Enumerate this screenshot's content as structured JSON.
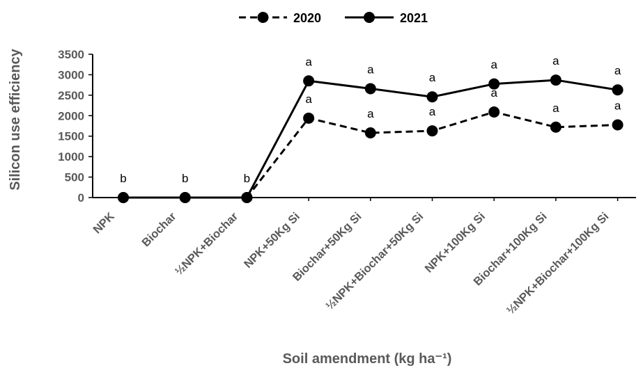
{
  "chart_data": {
    "type": "line",
    "xlabel": "Soil amendment (kg ha⁻¹)",
    "ylabel": "Silicon use efficiency",
    "ylim": [
      0,
      3500
    ],
    "yticks": [
      0,
      500,
      1000,
      1500,
      2000,
      2500,
      3000,
      3500
    ],
    "grid": false,
    "legend": "top-center",
    "categories": [
      "NPK",
      "Biochar",
      "½NPK+Biochar",
      "NPK+50Kg Si",
      "Biochar+50Kg Si",
      "½NPK+Biochar+50Kg Si",
      "NPK+100Kg Si",
      "Biochar+100Kg Si",
      "½NPK+Biochar+100Kg Si"
    ],
    "series": [
      {
        "name": "2020",
        "style": "dashed",
        "color": "#000000",
        "values": [
          0,
          0,
          0,
          1940,
          1580,
          1630,
          2090,
          1720,
          1775
        ],
        "annotations": [
          "",
          "",
          "",
          "a",
          "a",
          "a",
          "a",
          "a",
          "a"
        ]
      },
      {
        "name": "2021",
        "style": "solid",
        "color": "#000000",
        "values": [
          0,
          0,
          0,
          2850,
          2660,
          2460,
          2775,
          2870,
          2630
        ],
        "annotations": [
          "b",
          "b",
          "b",
          "a",
          "a",
          "a",
          "a",
          "a",
          "a"
        ]
      }
    ]
  }
}
